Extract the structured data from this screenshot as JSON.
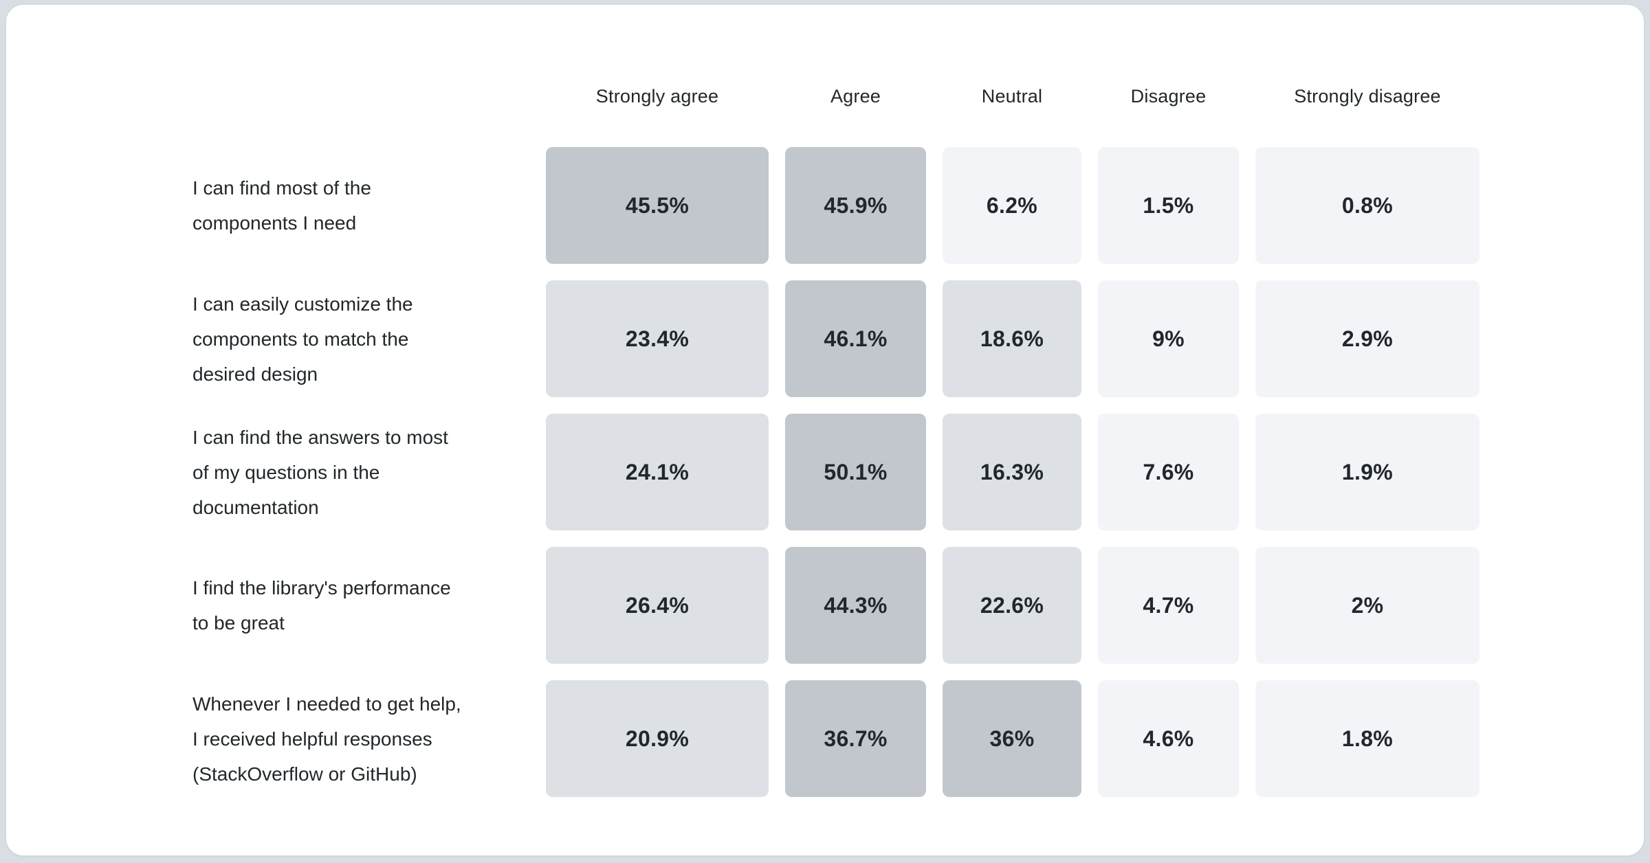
{
  "chart_data": {
    "type": "heatmap",
    "title": "",
    "columns": [
      "Strongly agree",
      "Agree",
      "Neutral",
      "Disagree",
      "Strongly disagree"
    ],
    "rows": [
      {
        "label": "I can find most of the components I need",
        "label_lines": [
          "I can find most of the",
          "components I need"
        ],
        "values": [
          45.5,
          45.9,
          6.2,
          1.5,
          0.8
        ],
        "display": [
          "45.5%",
          "45.9%",
          "6.2%",
          "1.5%",
          "0.8%"
        ]
      },
      {
        "label": "I can easily customize the components to match the desired design",
        "label_lines": [
          "I can easily customize the",
          "components to match the",
          "desired design"
        ],
        "values": [
          23.4,
          46.1,
          18.6,
          9,
          2.9
        ],
        "display": [
          "23.4%",
          "46.1%",
          "18.6%",
          "9%",
          "2.9%"
        ]
      },
      {
        "label": "I can find the answers to most of my questions in the documentation",
        "label_lines": [
          "I can find the answers to most",
          "of my questions in the",
          "documentation"
        ],
        "values": [
          24.1,
          50.1,
          16.3,
          7.6,
          1.9
        ],
        "display": [
          "24.1%",
          "50.1%",
          "16.3%",
          "7.6%",
          "1.9%"
        ]
      },
      {
        "label": "I find the library's performance to be great",
        "label_lines": [
          "I find the library's performance",
          "to be great"
        ],
        "values": [
          26.4,
          44.3,
          22.6,
          4.7,
          2
        ],
        "display": [
          "26.4%",
          "44.3%",
          "22.6%",
          "4.7%",
          "2%"
        ]
      },
      {
        "label": "Whenever I needed to get help, I received helpful responses (StackOverflow or GitHub)",
        "label_lines": [
          "Whenever I needed to get help,",
          "I received helpful responses",
          "(StackOverflow or GitHub)"
        ],
        "values": [
          20.9,
          36.7,
          36,
          4.6,
          1.8
        ],
        "display": [
          "20.9%",
          "36.7%",
          "36%",
          "4.6%",
          "1.8%"
        ]
      }
    ],
    "colors": {
      "high": "#c1c7cd",
      "medium": "#dde1e6",
      "low": "#f2f4f8"
    },
    "color_bins": {
      "high_min": 30,
      "medium_min": 10
    },
    "legend": "none",
    "grid": "off"
  }
}
